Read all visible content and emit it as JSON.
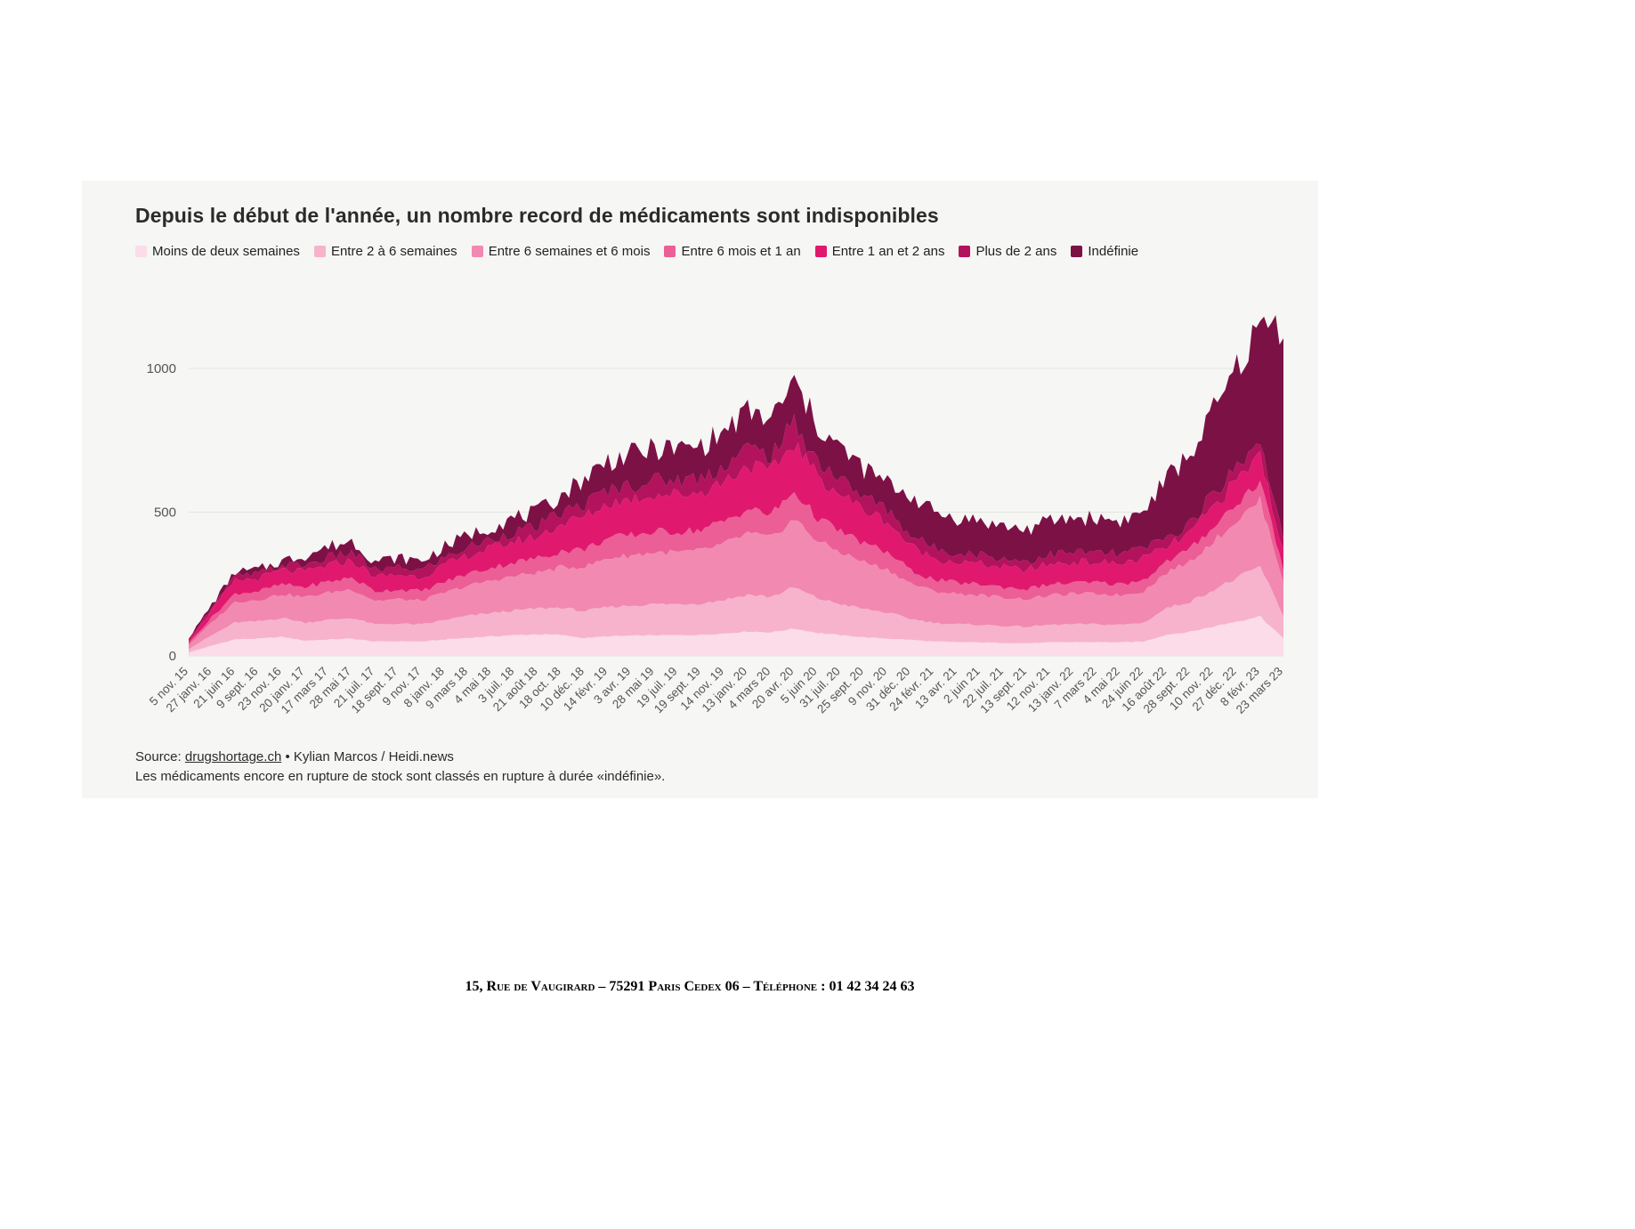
{
  "chart": {
    "source_prefix": "Source: ",
    "source_link": "drugshortage.ch",
    "source_suffix": " • Kylian Marcos / Heidi.news",
    "note": "Les médicaments encore en rupture de stock sont classés en rupture à durée «indéfinie»."
  },
  "page": {
    "footer": "15, Rue de Vaugirard – 75291 Paris Cedex 06 – Téléphone : 01 42 34 24 63"
  },
  "chart_data": {
    "type": "area",
    "stacked": true,
    "title": "Depuis le début de l'année, un nombre record de médicaments sont indisponibles",
    "ylabel": "",
    "xlabel": "",
    "ylim": [
      0,
      1250
    ],
    "yticks": [
      0,
      500,
      1000
    ],
    "grid": "horizontal",
    "legend_position": "top",
    "x_tick_labels": [
      "5 nov. 15",
      "27 janv. 16",
      "21 juin 16",
      "9 sept. 16",
      "23 nov. 16",
      "20 janv. 17",
      "17 mars 17",
      "28 mai 17",
      "21 juil. 17",
      "18 sept. 17",
      "9 nov. 17",
      "8 janv. 18",
      "9 mars 18",
      "4 mai 18",
      "3 juil. 18",
      "21 août 18",
      "18 oct. 18",
      "10 déc. 18",
      "14 févr. 19",
      "3 avr. 19",
      "28 mai 19",
      "19 juil. 19",
      "19 sept. 19",
      "14 nov. 19",
      "13 janv. 20",
      "4 mars 20",
      "20 avr. 20",
      "5 juin 20",
      "31 juil. 20",
      "25 sept. 20",
      "9 nov. 20",
      "31 déc. 20",
      "24 févr. 21",
      "13 avr. 21",
      "2 juin 21",
      "22 juil. 21",
      "13 sept. 21",
      "12 nov. 21",
      "13 janv. 22",
      "7 mars 22",
      "4 mai 22",
      "24 juin 22",
      "16 août 22",
      "28 sept. 22",
      "10 nov. 22",
      "27 déc. 22",
      "8 févr. 23",
      "23 mars 23"
    ],
    "series": [
      {
        "name": "Moins de deux semaines",
        "color": "#fbdce8",
        "values": [
          12,
          36,
          58,
          60,
          66,
          53,
          57,
          60,
          50,
          51,
          50,
          57,
          63,
          68,
          72,
          75,
          73,
          62,
          68,
          70,
          72,
          72,
          73,
          78,
          85,
          82,
          95,
          80,
          72,
          65,
          60,
          56,
          50,
          48,
          47,
          45,
          44,
          47,
          48,
          48,
          47,
          50,
          74,
          84,
          102,
          120,
          138,
          60
        ]
      },
      {
        "name": "Entre 2 à 6 semaines",
        "color": "#f7b3cc",
        "values": [
          12,
          36,
          58,
          60,
          66,
          63,
          68,
          72,
          59,
          61,
          59,
          68,
          76,
          81,
          86,
          90,
          95,
          93,
          102,
          105,
          108,
          108,
          110,
          117,
          128,
          123,
          143,
          120,
          108,
          98,
          90,
          73,
          65,
          62,
          61,
          59,
          57,
          61,
          62,
          62,
          61,
          65,
          93,
          105,
          128,
          150,
          173,
          80
        ]
      },
      {
        "name": "Entre 6 semaines et 6 mois",
        "color": "#f289b1",
        "values": [
          15,
          45,
          72,
          75,
          83,
          88,
          95,
          100,
          83,
          85,
          83,
          95,
          105,
          113,
          120,
          125,
          140,
          155,
          170,
          175,
          180,
          180,
          183,
          195,
          213,
          205,
          238,
          200,
          180,
          163,
          150,
          123,
          110,
          106,
          103,
          99,
          97,
          103,
          106,
          106,
          103,
          110,
          124,
          140,
          170,
          200,
          230,
          120
        ]
      },
      {
        "name": "Entre 6 mois et 1 an",
        "color": "#ec5e96",
        "values": [
          6,
          18,
          29,
          30,
          33,
          35,
          38,
          40,
          33,
          34,
          33,
          38,
          42,
          45,
          48,
          50,
          56,
          62,
          68,
          70,
          72,
          72,
          73,
          78,
          85,
          82,
          95,
          80,
          72,
          65,
          60,
          45,
          40,
          38,
          38,
          36,
          35,
          38,
          38,
          38,
          38,
          40,
          37,
          42,
          51,
          60,
          69,
          40
        ]
      },
      {
        "name": "Entre 1 an et 2 ans",
        "color": "#e0196e",
        "values": [
          9,
          27,
          44,
          45,
          50,
          53,
          57,
          60,
          50,
          51,
          50,
          57,
          63,
          68,
          72,
          75,
          95,
          112,
          122,
          126,
          130,
          130,
          131,
          140,
          153,
          148,
          171,
          144,
          130,
          117,
          108,
          84,
          75,
          72,
          71,
          68,
          66,
          71,
          72,
          72,
          71,
          75,
          50,
          56,
          68,
          80,
          92,
          60
        ]
      },
      {
        "name": "Plus de 2 ans",
        "color": "#b3135c",
        "values": [
          3,
          9,
          15,
          15,
          16,
          24,
          27,
          28,
          23,
          24,
          23,
          27,
          29,
          31,
          34,
          35,
          39,
          43,
          48,
          49,
          50,
          50,
          51,
          55,
          60,
          57,
          67,
          56,
          50,
          46,
          42,
          39,
          35,
          34,
          33,
          31,
          31,
          33,
          34,
          34,
          33,
          35,
          31,
          35,
          43,
          50,
          58,
          40
        ]
      },
      {
        "name": "Indéfinie",
        "color": "#7c1146",
        "values": [
          3,
          9,
          14,
          15,
          16,
          34,
          38,
          40,
          32,
          34,
          32,
          38,
          42,
          44,
          48,
          50,
          62,
          93,
          102,
          105,
          108,
          108,
          109,
          117,
          126,
          123,
          141,
          120,
          108,
          96,
          90,
          140,
          125,
          120,
          117,
          112,
          110,
          117,
          120,
          120,
          117,
          125,
          211,
          238,
          288,
          340,
          390,
          750
        ]
      }
    ]
  }
}
